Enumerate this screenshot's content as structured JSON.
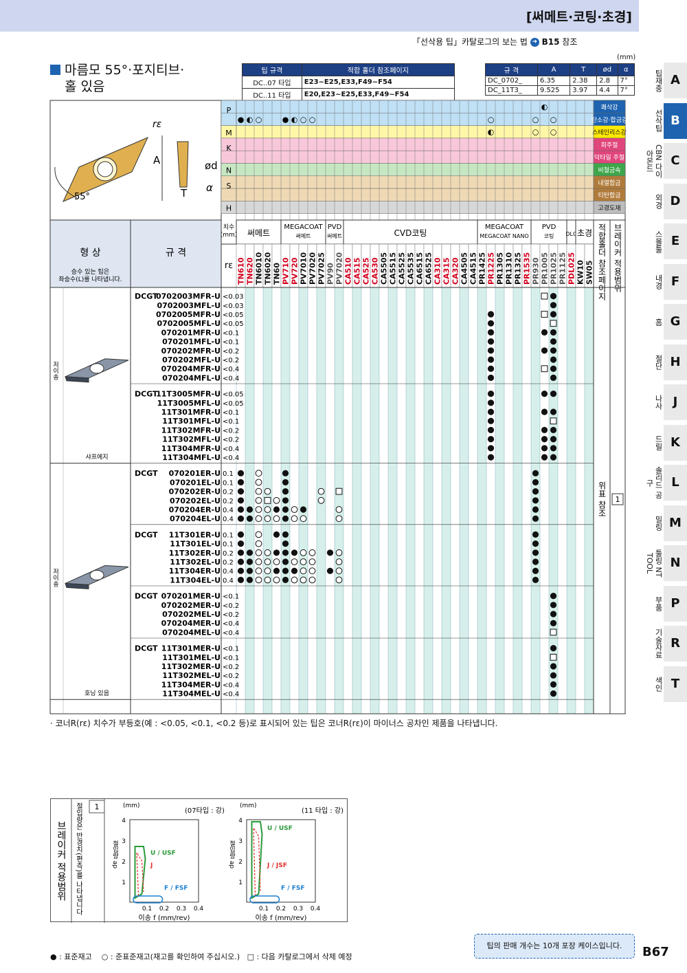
{
  "header": {
    "category": "[써메트·코팅·초경]",
    "reference": "「선삭용 팁」카탈로그의 보는 법",
    "reference_page": "B15",
    "reference_suffix": "참조",
    "unit": "(mm)"
  },
  "title": {
    "line1": "마름모 55°·포지티브·",
    "line2": "홀 있음"
  },
  "tip_table": {
    "headers": [
      "팁 규격",
      "적합 홀더 참조페이지"
    ],
    "rows": [
      [
        "DC..07 타입",
        "E23~E25,E33,F49~F54"
      ],
      [
        "DC..11 타입",
        "E20,E23~E25,E33,F49~F54"
      ]
    ]
  },
  "dim_table": {
    "headers": [
      "규 격",
      "A",
      "T",
      "ød",
      "α"
    ],
    "rows": [
      [
        "DC_0702_",
        "6.35",
        "2.38",
        "2.8",
        "7°"
      ],
      [
        "DC_11T3_",
        "9.525",
        "3.97",
        "4.4",
        "7°"
      ]
    ]
  },
  "diagram": {
    "re": "rε",
    "a": "A",
    "t": "T",
    "d": "ød",
    "alpha": "α",
    "angle": "55°"
  },
  "materials": [
    {
      "code": "P",
      "name": "쾌삭강",
      "color": "#bfe0f5"
    },
    {
      "code": "",
      "name": "탄소강·합금강",
      "color": "#bfe0f5"
    },
    {
      "code": "M",
      "name": "스테인리스강",
      "color": "#fff7a8"
    },
    {
      "code": "K",
      "name": "회주철",
      "color": "#f8c8da"
    },
    {
      "code": "",
      "name": "덕타일 주철",
      "color": "#f8c8da"
    },
    {
      "code": "N",
      "name": "비철금속",
      "color": "#c7e6c2"
    },
    {
      "code": "S",
      "name": "내열합금",
      "color": "#efd9b4"
    },
    {
      "code": "",
      "name": "티탄합금",
      "color": "#efd9b4"
    },
    {
      "code": "H",
      "name": "고경도재",
      "color": "#d8d8d8"
    }
  ],
  "group_headers": {
    "size": "치수\n(mm)",
    "cermet": "써메트",
    "megacoat_cermet": "MEGACOAT\n써메트",
    "pvd_cermet": "PVD\n써메트",
    "cvd": "CVD코팅",
    "megacoat_nano": "MEGACOAT\nMEGACOAT NANO",
    "pvd": "PVD\n코팅",
    "dlc": "DLC",
    "carbide": "초경",
    "holder": "적합홀더 참조페이지",
    "breaker": "브레이커 적용범위"
  },
  "shape_header": "형 상",
  "shape_note": "승수 있는 팁은\n좌승수(L)를 나타냅니다.",
  "spec_header": "규 격",
  "re_label": "rε",
  "grades": [
    {
      "name": "TN610",
      "color": "#d2001e"
    },
    {
      "name": "TN620",
      "color": "#d2001e"
    },
    {
      "name": "TN6010",
      "color": "#111"
    },
    {
      "name": "TN6020",
      "color": "#111"
    },
    {
      "name": "TN60",
      "color": "#111"
    },
    {
      "name": "PV710",
      "color": "#d2001e"
    },
    {
      "name": "PV720",
      "color": "#d2001e"
    },
    {
      "name": "PV7010",
      "color": "#111"
    },
    {
      "name": "PV7020",
      "color": "#111"
    },
    {
      "name": "PV7025",
      "color": "#111"
    },
    {
      "name": "PV90",
      "color": "#555"
    },
    {
      "name": "PV7020",
      "color": "#555"
    },
    {
      "name": "CA510",
      "color": "#d2001e"
    },
    {
      "name": "CA515",
      "color": "#d2001e"
    },
    {
      "name": "CA525",
      "color": "#d2001e"
    },
    {
      "name": "CA530",
      "color": "#d2001e"
    },
    {
      "name": "CA5505",
      "color": "#111"
    },
    {
      "name": "CA5515",
      "color": "#111"
    },
    {
      "name": "CA5525",
      "color": "#111"
    },
    {
      "name": "CA5535",
      "color": "#111"
    },
    {
      "name": "CA6515",
      "color": "#111"
    },
    {
      "name": "CA6525",
      "color": "#111"
    },
    {
      "name": "CA310",
      "color": "#d2001e"
    },
    {
      "name": "CA315",
      "color": "#d2001e"
    },
    {
      "name": "CA320",
      "color": "#d2001e"
    },
    {
      "name": "CA4505",
      "color": "#111"
    },
    {
      "name": "CA4515",
      "color": "#111"
    },
    {
      "name": "PR1425",
      "color": "#111"
    },
    {
      "name": "PR1225",
      "color": "#d2001e"
    },
    {
      "name": "PR1305",
      "color": "#111"
    },
    {
      "name": "PR1310",
      "color": "#111"
    },
    {
      "name": "PR1325",
      "color": "#111"
    },
    {
      "name": "PR1535",
      "color": "#d2001e"
    },
    {
      "name": "PR930",
      "color": "#555"
    },
    {
      "name": "PR1005",
      "color": "#555"
    },
    {
      "name": "PR1025",
      "color": "#555"
    },
    {
      "name": "PR1125",
      "color": "#555"
    },
    {
      "name": "PDL025",
      "color": "#d2001e"
    },
    {
      "name": "KW10",
      "color": "#111"
    },
    {
      "name": "SW05",
      "color": "#111"
    }
  ],
  "groups": [
    {
      "shape": "샤프에지",
      "series": [
        {
          "prefix": "DCGT",
          "rows": [
            {
              "code": "0702003MFR-U",
              "re": "<0.03",
              "marks": {
                "34": "□",
                "35": "●"
              }
            },
            {
              "code": "0702003MFL-U",
              "re": "<0.03",
              "marks": {
                "35": "●"
              }
            },
            {
              "code": "0702005MFR-U",
              "re": "<0.05",
              "marks": {
                "28": "●",
                "34": "□",
                "35": "●"
              }
            },
            {
              "code": "0702005MFL-U",
              "re": "<0.05",
              "marks": {
                "28": "●",
                "35": "□"
              }
            },
            {
              "code": "070201MFR-U",
              "re": "<0.1",
              "marks": {
                "28": "●",
                "34": "●",
                "35": "●"
              }
            },
            {
              "code": "070201MFL-U",
              "re": "<0.1",
              "marks": {
                "28": "●",
                "35": "●"
              }
            },
            {
              "code": "070202MFR-U",
              "re": "<0.2",
              "marks": {
                "28": "●",
                "34": "●",
                "35": "●"
              }
            },
            {
              "code": "070202MFL-U",
              "re": "<0.2",
              "marks": {
                "28": "●",
                "35": "●"
              }
            },
            {
              "code": "070204MFR-U",
              "re": "<0.4",
              "marks": {
                "28": "●",
                "34": "□",
                "35": "●"
              }
            },
            {
              "code": "070204MFL-U",
              "re": "<0.4",
              "marks": {
                "28": "●",
                "35": "●"
              }
            }
          ]
        },
        {
          "prefix": "DCGT",
          "rows": [
            {
              "code": "11T3005MFR-U",
              "re": "<0.05",
              "marks": {
                "28": "●",
                "34": "●",
                "35": "●"
              }
            },
            {
              "code": "11T3005MFL-U",
              "re": "<0.05",
              "marks": {
                "28": "●"
              }
            },
            {
              "code": "11T301MFR-U",
              "re": "<0.1",
              "marks": {
                "28": "●",
                "34": "●",
                "35": "●"
              }
            },
            {
              "code": "11T301MFL-U",
              "re": "<0.1",
              "marks": {
                "28": "●",
                "35": "□"
              }
            },
            {
              "code": "11T302MFR-U",
              "re": "<0.2",
              "marks": {
                "28": "●",
                "34": "●",
                "35": "●"
              }
            },
            {
              "code": "11T302MFL-U",
              "re": "<0.2",
              "marks": {
                "28": "●",
                "34": "●",
                "35": "●"
              }
            },
            {
              "code": "11T304MFR-U",
              "re": "<0.4",
              "marks": {
                "28": "●",
                "34": "●",
                "35": "●"
              }
            },
            {
              "code": "11T304MFL-U",
              "re": "<0.4",
              "marks": {
                "28": "●",
                "34": "●",
                "35": "●"
              }
            }
          ]
        }
      ]
    },
    {
      "shape": "호닝 있음",
      "series": [
        {
          "prefix": "DCGT",
          "rows": [
            {
              "code": "070201ER-U",
              "re": "0.1",
              "marks": {
                "0": "●",
                "2": "○",
                "5": "●",
                "33": "●"
              }
            },
            {
              "code": "070201EL-U",
              "re": "0.1",
              "marks": {
                "0": "●",
                "2": "○",
                "5": "●",
                "33": "●"
              }
            },
            {
              "code": "070202ER-U",
              "re": "0.2",
              "marks": {
                "0": "●",
                "2": "○",
                "3": "○",
                "5": "●",
                "9": "○",
                "11": "□",
                "33": "●"
              }
            },
            {
              "code": "070202EL-U",
              "re": "0.2",
              "marks": {
                "0": "●",
                "2": "○",
                "3": "□",
                "4": "○",
                "5": "●",
                "9": "○",
                "33": "●"
              }
            },
            {
              "code": "070204ER-U",
              "re": "0.4",
              "marks": {
                "0": "●",
                "1": "●",
                "2": "○",
                "3": "○",
                "4": "●",
                "5": "●",
                "6": "○",
                "7": "●",
                "11": "○",
                "33": "●"
              }
            },
            {
              "code": "070204EL-U",
              "re": "0.4",
              "marks": {
                "0": "●",
                "1": "●",
                "2": "○",
                "3": "○",
                "4": "○",
                "5": "●",
                "6": "○",
                "7": "○",
                "11": "○",
                "33": "●"
              }
            }
          ]
        },
        {
          "prefix": "DCGT",
          "rows": [
            {
              "code": "11T301ER-U",
              "re": "0.1",
              "marks": {
                "0": "●",
                "2": "○",
                "4": "●",
                "5": "●",
                "33": "●"
              }
            },
            {
              "code": "11T301EL-U",
              "re": "0.1",
              "marks": {
                "0": "●",
                "2": "○",
                "5": "●",
                "33": "●"
              }
            },
            {
              "code": "11T302ER-U",
              "re": "0.2",
              "marks": {
                "0": "●",
                "1": "●",
                "2": "○",
                "3": "○",
                "4": "●",
                "5": "●",
                "6": "●",
                "7": "○",
                "8": "○",
                "10": "●",
                "11": "○",
                "33": "●"
              }
            },
            {
              "code": "11T302EL-U",
              "re": "0.2",
              "marks": {
                "0": "●",
                "1": "●",
                "2": "○",
                "3": "○",
                "4": "○",
                "5": "●",
                "6": "○",
                "7": "○",
                "8": "○",
                "11": "○",
                "33": "●"
              }
            },
            {
              "code": "11T304ER-U",
              "re": "0.4",
              "marks": {
                "0": "●",
                "1": "●",
                "2": "○",
                "3": "○",
                "4": "●",
                "5": "●",
                "6": "●",
                "7": "○",
                "8": "○",
                "10": "●",
                "11": "○",
                "33": "●"
              }
            },
            {
              "code": "11T304EL-U",
              "re": "0.4",
              "marks": {
                "0": "●",
                "1": "●",
                "2": "○",
                "3": "○",
                "4": "○",
                "5": "●",
                "6": "○",
                "7": "○",
                "8": "○",
                "11": "○",
                "33": "●"
              }
            }
          ]
        },
        {
          "prefix": "DCGT",
          "rows": [
            {
              "code": "070201MER-U",
              "re": "<0.1",
              "marks": {
                "35": "●"
              }
            },
            {
              "code": "070202MER-U",
              "re": "<0.2",
              "marks": {
                "35": "●"
              }
            },
            {
              "code": "070202MEL-U",
              "re": "<0.2",
              "marks": {
                "35": "●"
              }
            },
            {
              "code": "070204MER-U",
              "re": "<0.4",
              "marks": {
                "35": "●"
              }
            },
            {
              "code": "070204MEL-U",
              "re": "<0.4",
              "marks": {
                "35": "□"
              }
            }
          ]
        },
        {
          "prefix": "DCGT",
          "rows": [
            {
              "code": "11T301MER-U",
              "re": "<0.1",
              "marks": {
                "35": "●"
              }
            },
            {
              "code": "11T301MEL-U",
              "re": "<0.1",
              "marks": {
                "35": "□"
              }
            },
            {
              "code": "11T302MER-U",
              "re": "<0.2",
              "marks": {
                "35": "●"
              }
            },
            {
              "code": "11T302MEL-U",
              "re": "<0.2",
              "marks": {
                "35": "●"
              }
            },
            {
              "code": "11T304MER-U",
              "re": "<0.4",
              "marks": {
                "35": "●"
              }
            },
            {
              "code": "11T304MEL-U",
              "re": "<0.4",
              "marks": {
                "35": "●"
              }
            }
          ]
        }
      ]
    }
  ],
  "side_label": "저이송",
  "holder_ref": "위표 참조",
  "breaker_ref": "1",
  "note": "· 코너R(rε) 치수가 부등호(예 : <0.05, <0.1, <0.2 등)로 표시되어 있는 팁은 코너R(rε)이 마이너스 공차인 제품을 나타냅니다.",
  "breaker_box": {
    "title": "브레이커 적용범위",
    "caption": "절입량은 반경치(편측)를 나타냅니다",
    "num": "1",
    "chart07": {
      "unit": "(mm)",
      "type_label": "(07타입 : 강)",
      "ylabel": "절입량 ap",
      "xlabel": "이송 f (mm/rev)",
      "xticks": [
        "0.1",
        "0.2",
        "0.3",
        "0.4"
      ],
      "yticks": [
        "1",
        "2",
        "3",
        "4"
      ],
      "labels": [
        "U / USF",
        "J",
        "F / FSF"
      ]
    },
    "chart11": {
      "unit": "(mm)",
      "type_label": "(11 타입 : 강)",
      "ylabel": "절입량 ap",
      "xlabel": "이송 f (mm/rev)",
      "xticks": [
        "0.1",
        "0.2",
        "0.3",
        "0.4"
      ],
      "yticks": [
        "1",
        "2",
        "3",
        "4"
      ],
      "labels": [
        "U / USF",
        "J / JSF",
        "F / FSF"
      ]
    }
  },
  "legend": {
    "std": "● : 표준재고",
    "semi": "○ : 준표준재고(재고를 확인하여 주십시오.)",
    "del": "□ : 다음 카탈로그에서 삭제 예정"
  },
  "pack_note": "팁의 판매 개수는 10개 포장 케이스입니다.",
  "page_number": "B67",
  "side_nav": [
    {
      "label": "팁재종",
      "letter": "A"
    },
    {
      "label": "선삭팁",
      "letter": "B",
      "active": true
    },
    {
      "label": "CBN 다이아몬드",
      "letter": "C"
    },
    {
      "label": "외경",
      "letter": "D"
    },
    {
      "label": "스몰툴",
      "letter": "E"
    },
    {
      "label": "내경",
      "letter": "F"
    },
    {
      "label": "홈",
      "letter": "G"
    },
    {
      "label": "절단",
      "letter": "H"
    },
    {
      "label": "나사",
      "letter": "J"
    },
    {
      "label": "드릴",
      "letter": "K"
    },
    {
      "label": "솔리드 공구",
      "letter": "L"
    },
    {
      "label": "밀링",
      "letter": "M"
    },
    {
      "label": "툴링 NT TOOL",
      "letter": "N"
    },
    {
      "label": "부품",
      "letter": "P"
    },
    {
      "label": "기술자료",
      "letter": "R"
    },
    {
      "label": "색인",
      "letter": "T"
    }
  ]
}
